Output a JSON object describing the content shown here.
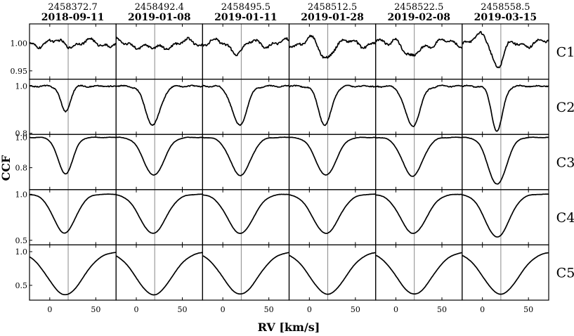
{
  "chart_data": {
    "type": "line",
    "xlabel": "RV [km/s]",
    "ylabel": "CCF",
    "xlim": [
      -22,
      72
    ],
    "x_ticks": [
      "0",
      "50"
    ],
    "reference_rv": 20,
    "epochs": [
      {
        "jd": "2458372.7",
        "date": "2018-09-11"
      },
      {
        "jd": "2458492.4",
        "date": "2019-01-08"
      },
      {
        "jd": "2458495.5",
        "date": "2019-01-11"
      },
      {
        "jd": "2458512.5",
        "date": "2019-01-28"
      },
      {
        "jd": "2458522.5",
        "date": "2019-02-08"
      },
      {
        "jd": "2458558.5",
        "date": "2019-03-15"
      }
    ],
    "components": [
      {
        "label": "C1",
        "ylim": [
          0.935,
          1.035
        ],
        "yticks": [
          {
            "v": 1.0,
            "t": "1.00"
          },
          {
            "v": 0.95,
            "t": "0.95"
          }
        ],
        "minima": [
          1.0,
          0.988,
          0.985,
          0.975,
          0.97,
          0.958
        ],
        "centers": [
          30,
          18,
          17,
          17,
          16,
          17
        ],
        "widths": [
          20,
          9,
          6,
          6,
          7,
          6
        ]
      },
      {
        "label": "C2",
        "ylim": [
          0.795,
          1.03
        ],
        "yticks": [
          {
            "v": 1.0,
            "t": "1.0"
          },
          {
            "v": 0.8,
            "t": "0.8"
          }
        ],
        "minima": [
          0.89,
          0.835,
          0.835,
          0.835,
          0.83,
          0.81
        ],
        "centers": [
          17,
          18,
          18,
          17,
          18,
          16
        ],
        "widths": [
          5,
          8,
          8,
          7,
          8,
          6
        ]
      },
      {
        "label": "C3",
        "ylim": [
          0.655,
          1.02
        ],
        "yticks": [
          {
            "v": 1.0,
            "t": "1.0"
          },
          {
            "v": 0.8,
            "t": "0.8"
          }
        ],
        "minima": [
          0.76,
          0.75,
          0.75,
          0.75,
          0.745,
          0.69
        ],
        "centers": [
          17,
          19,
          19,
          18,
          18,
          16
        ],
        "widths": [
          8,
          11,
          11,
          11,
          11,
          10
        ]
      },
      {
        "label": "C4",
        "ylim": [
          0.45,
          1.05
        ],
        "yticks": [
          {
            "v": 1.0,
            "t": "1.0"
          },
          {
            "v": 0.5,
            "t": "0.5"
          }
        ],
        "minima": [
          0.58,
          0.575,
          0.575,
          0.575,
          0.575,
          0.535
        ],
        "centers": [
          16,
          18,
          19,
          18,
          19,
          16
        ],
        "widths": [
          12,
          14,
          14,
          14,
          14,
          13
        ]
      },
      {
        "label": "C5",
        "ylim": [
          0.28,
          1.1
        ],
        "yticks": [
          {
            "v": 1.0,
            "t": "1.0"
          },
          {
            "v": 0.5,
            "t": "0.5"
          }
        ],
        "minima": [
          0.36,
          0.36,
          0.37,
          0.37,
          0.37,
          0.37
        ],
        "centers": [
          17,
          19,
          19,
          20,
          20,
          20
        ],
        "widths": [
          19,
          19,
          19,
          19,
          19,
          19
        ]
      }
    ],
    "grid": false,
    "legend": "none"
  }
}
